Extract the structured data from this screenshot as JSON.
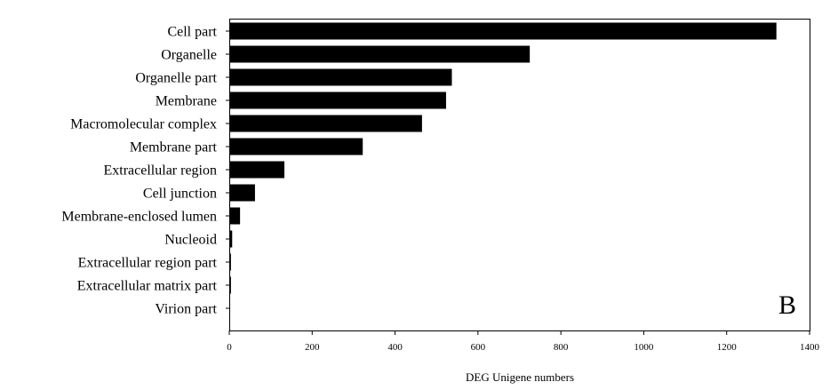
{
  "chart_data": {
    "type": "bar",
    "orientation": "horizontal",
    "categories": [
      "Cell part",
      "Organelle",
      "Organelle part",
      "Membrane",
      "Macromolecular complex",
      "Membrane part",
      "Extracellular region",
      "Cell junction",
      "Membrane-enclosed lumen",
      "Nucleoid",
      "Extracellular region part",
      "Extracellular matrix part",
      "Virion part"
    ],
    "values": [
      1320,
      725,
      537,
      523,
      465,
      322,
      133,
      62,
      26,
      7,
      4,
      4,
      1
    ],
    "xlabel": "DEG Unigene numbers",
    "ylabel": "",
    "xlim": [
      0,
      1400
    ],
    "xticks": [
      0,
      200,
      400,
      600,
      800,
      1000,
      1200,
      1400
    ],
    "panel_label": "B",
    "grid": false,
    "bar_color": "#000000"
  }
}
